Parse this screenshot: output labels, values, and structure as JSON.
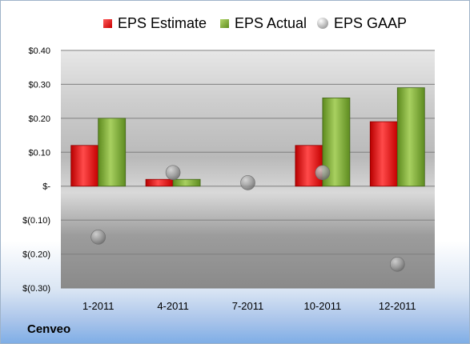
{
  "legend": {
    "estimate": "EPS Estimate",
    "actual": "EPS Actual",
    "gaap": "EPS GAAP"
  },
  "company": "Cenveo",
  "colors": {
    "estimate": "#e32525",
    "actual": "#86b33c",
    "gaap": "#a8a8a8"
  },
  "chart_data": {
    "type": "bar",
    "categories": [
      "1-2011",
      "4-2011",
      "7-2011",
      "10-2011",
      "12-2011"
    ],
    "series": [
      {
        "name": "EPS Estimate",
        "values": [
          0.12,
          0.02,
          null,
          0.12,
          0.19
        ]
      },
      {
        "name": "EPS Actual",
        "values": [
          0.2,
          0.02,
          null,
          0.26,
          0.29
        ]
      },
      {
        "name": "EPS GAAP",
        "type": "scatter",
        "values": [
          -0.15,
          0.04,
          0.01,
          0.04,
          -0.23
        ]
      }
    ],
    "ylim": [
      -0.3,
      0.4
    ],
    "yticks": [
      0.4,
      0.3,
      0.2,
      0.1,
      0.0,
      -0.1,
      -0.2,
      -0.3
    ],
    "ytick_labels": [
      "$0.40",
      "$0.30",
      "$0.20",
      "$0.10",
      "$-",
      "$(0.10)",
      "$(0.20)",
      "$(0.30)"
    ],
    "legend_position": "top",
    "grid": true
  }
}
